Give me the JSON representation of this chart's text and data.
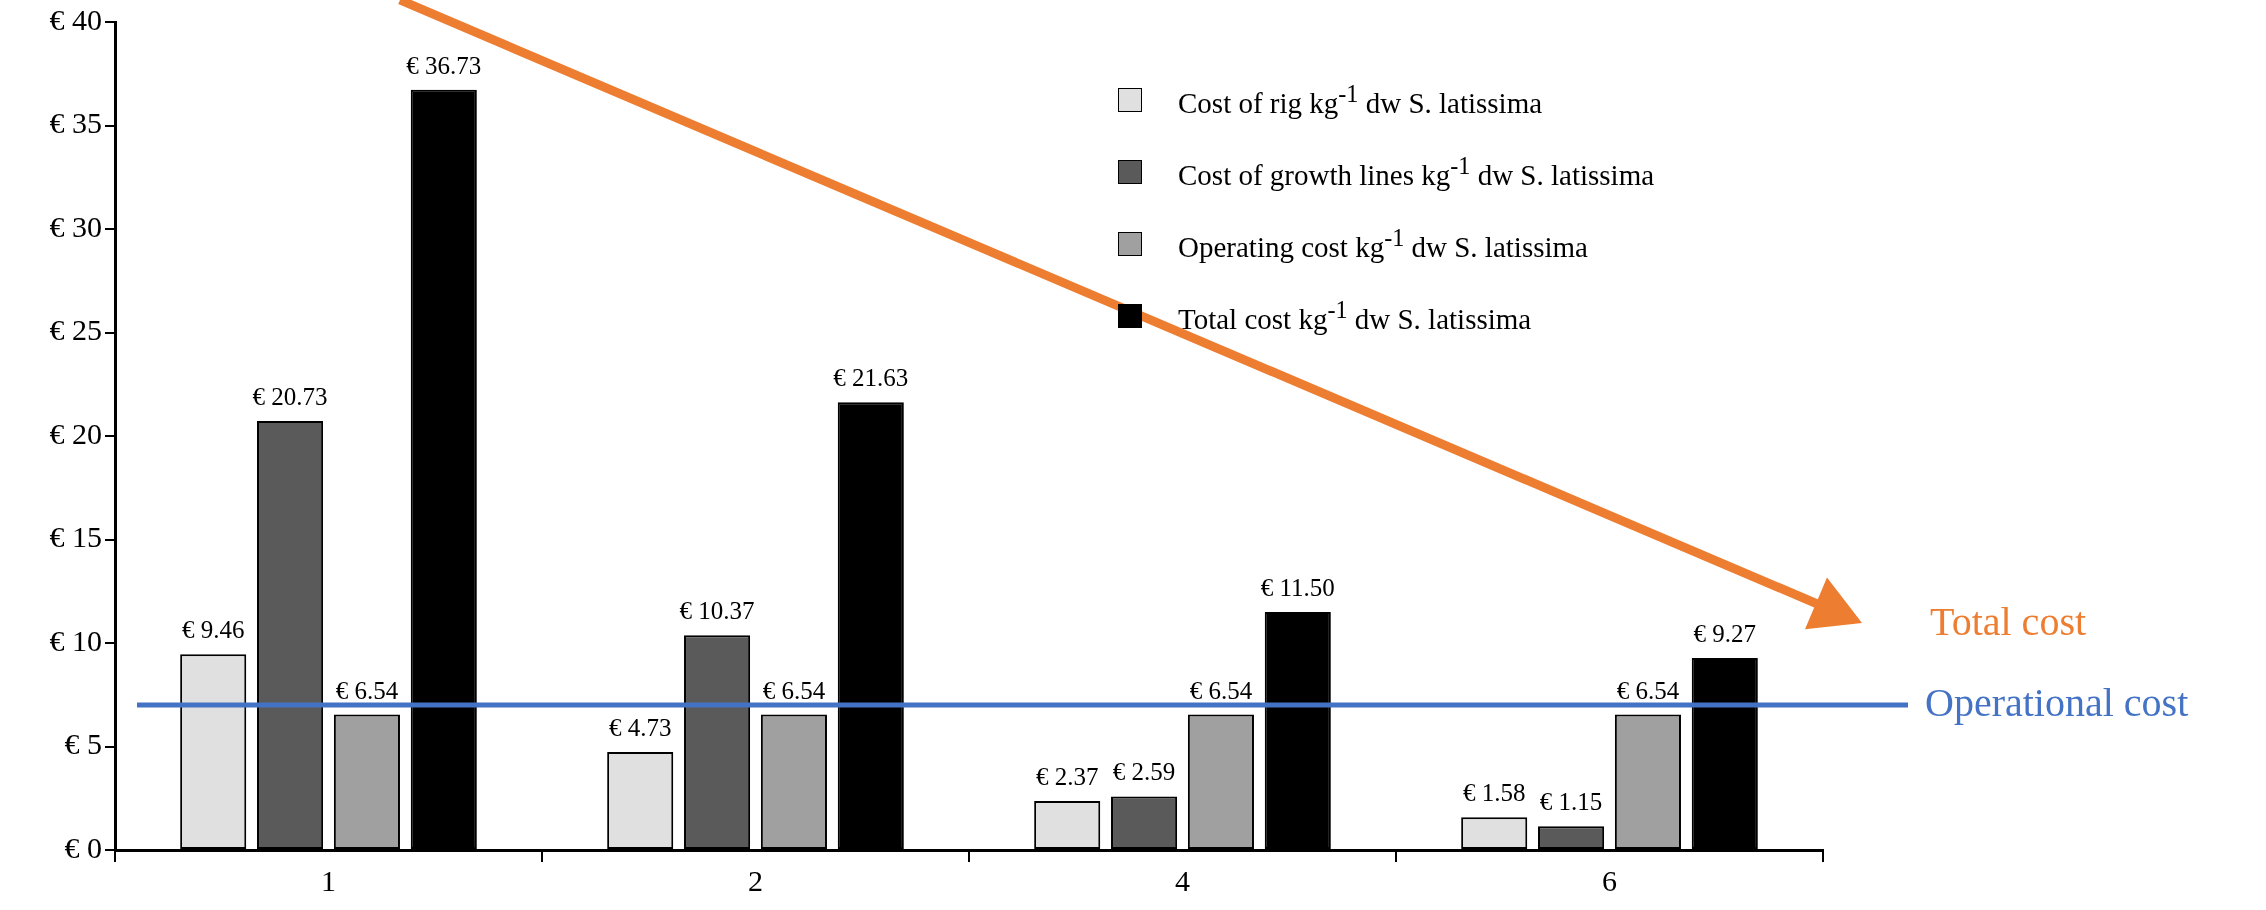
{
  "chart_data": {
    "type": "bar",
    "categories": [
      "1",
      "2",
      "4",
      "6"
    ],
    "ylim": [
      0,
      40
    ],
    "yticks": [
      {
        "value": 0,
        "label": "€ 0"
      },
      {
        "value": 5,
        "label": "€ 5"
      },
      {
        "value": 10,
        "label": "€ 10"
      },
      {
        "value": 15,
        "label": "€ 15"
      },
      {
        "value": 20,
        "label": "€ 20"
      },
      {
        "value": 25,
        "label": "€ 25"
      },
      {
        "value": 30,
        "label": "€ 30"
      },
      {
        "value": 35,
        "label": "€ 35"
      },
      {
        "value": 40,
        "label": "€ 40"
      }
    ],
    "series": [
      {
        "name": "Cost of rig kg$^{-1}$ dw S. latissima",
        "color": "#e0e0e0",
        "values": [
          9.46,
          4.73,
          2.37,
          1.58
        ],
        "value_labels": [
          "€ 9.46",
          "€ 4.73",
          "€ 2.37",
          "€ 1.58"
        ]
      },
      {
        "name": "Cost of growth lines kg$^{-1}$ dw S. latissima",
        "color": "#5a5a5a",
        "values": [
          20.73,
          10.37,
          2.59,
          1.15
        ],
        "value_labels": [
          "€ 20.73",
          "€ 10.37",
          "€ 2.59",
          "€ 1.15"
        ]
      },
      {
        "name": "Operating cost kg$^{-1}$ dw S. latissima",
        "color": "#a0a0a0",
        "values": [
          6.54,
          6.54,
          6.54,
          6.54
        ],
        "value_labels": [
          "€ 6.54",
          "€ 6.54",
          "€ 6.54",
          "€ 6.54"
        ]
      },
      {
        "name": "Total cost kg$^{-1}$ dw S. latissima",
        "color": "#000000",
        "values": [
          36.73,
          21.63,
          11.5,
          9.27
        ],
        "value_labels": [
          "€ 36.73",
          "€ 21.63",
          "€ 11.50",
          "€ 9.27"
        ]
      }
    ],
    "ref_lines": [
      {
        "axis": "y",
        "value": 7,
        "label": "Operational cost",
        "color": "#4472c4"
      }
    ],
    "annotations": [
      "Total cost"
    ],
    "legend": "top right"
  }
}
